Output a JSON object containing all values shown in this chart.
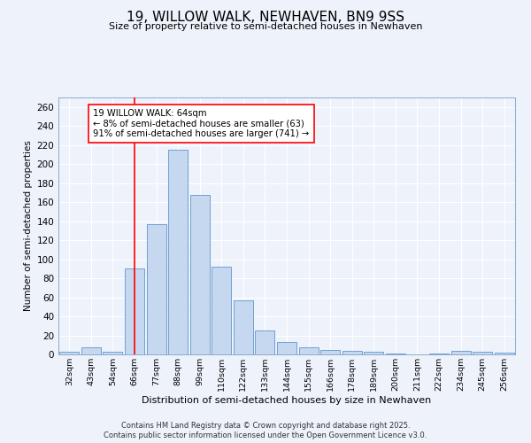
{
  "title": "19, WILLOW WALK, NEWHAVEN, BN9 9SS",
  "subtitle": "Size of property relative to semi-detached houses in Newhaven",
  "xlabel": "Distribution of semi-detached houses by size in Newhaven",
  "ylabel": "Number of semi-detached properties",
  "categories": [
    "32sqm",
    "43sqm",
    "54sqm",
    "66sqm",
    "77sqm",
    "88sqm",
    "99sqm",
    "110sqm",
    "122sqm",
    "133sqm",
    "144sqm",
    "155sqm",
    "166sqm",
    "178sqm",
    "189sqm",
    "200sqm",
    "211sqm",
    "222sqm",
    "234sqm",
    "245sqm",
    "256sqm"
  ],
  "values": [
    3,
    7,
    3,
    90,
    137,
    215,
    168,
    92,
    57,
    25,
    13,
    7,
    5,
    4,
    3,
    1,
    0,
    1,
    4,
    3,
    2
  ],
  "bar_color": "#c5d8f0",
  "bar_edge_color": "#6fa0d0",
  "redline_index": 3,
  "property_size": "64sqm",
  "pct_smaller": 8,
  "pct_larger": 91,
  "count_smaller": 63,
  "count_larger": 741,
  "ylim": [
    0,
    270
  ],
  "yticks": [
    0,
    20,
    40,
    60,
    80,
    100,
    120,
    140,
    160,
    180,
    200,
    220,
    240,
    260
  ],
  "background_color": "#eef2fb",
  "plot_bg_color": "#eef2fb",
  "grid_color": "#ffffff",
  "footnote1": "Contains HM Land Registry data © Crown copyright and database right 2025.",
  "footnote2": "Contains public sector information licensed under the Open Government Licence v3.0."
}
